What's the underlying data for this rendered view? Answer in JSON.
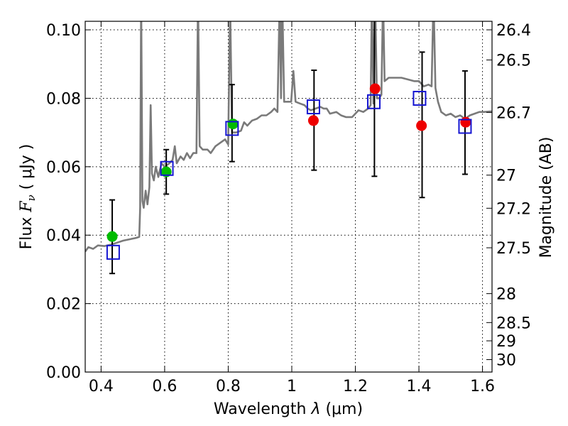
{
  "chart_data": {
    "type": "scatter",
    "xlabel_prefix": "Wavelength",
    "xlabel_lambda": "λ",
    "xlabel_unit": "(μm)",
    "ylabel_text": "Flux",
    "ylabel_symbol": "F",
    "ylabel_subscript": "ν",
    "ylabel_unit": "( μJy )",
    "y2label": "Magnitude (AB)",
    "xlim": [
      0.35,
      1.63
    ],
    "ylim": [
      0.0,
      0.1025
    ],
    "x_ticks": [
      {
        "value": 0.4,
        "label": "0.4"
      },
      {
        "value": 0.6,
        "label": "0.6"
      },
      {
        "value": 0.8,
        "label": "0.8"
      },
      {
        "value": 1.0,
        "label": "1"
      },
      {
        "value": 1.2,
        "label": "1.2"
      },
      {
        "value": 1.4,
        "label": "1.4"
      },
      {
        "value": 1.6,
        "label": "1.6"
      }
    ],
    "y_ticks": [
      {
        "value": 0.0,
        "label": "0.00"
      },
      {
        "value": 0.02,
        "label": "0.02"
      },
      {
        "value": 0.04,
        "label": "0.04"
      },
      {
        "value": 0.06,
        "label": "0.06"
      },
      {
        "value": 0.08,
        "label": "0.08"
      },
      {
        "value": 0.1,
        "label": "0.10"
      }
    ],
    "y2_ticks": [
      {
        "mag": 26.4,
        "label": "26.4"
      },
      {
        "mag": 26.5,
        "label": "26.5"
      },
      {
        "mag": 26.7,
        "label": "26.7"
      },
      {
        "mag": 27.0,
        "label": "27"
      },
      {
        "mag": 27.2,
        "label": "27.2"
      },
      {
        "mag": 27.5,
        "label": "27.5"
      },
      {
        "mag": 28.0,
        "label": "28"
      },
      {
        "mag": 28.5,
        "label": "28.5"
      },
      {
        "mag": 29.0,
        "label": "29"
      },
      {
        "mag": 30.0,
        "label": "30"
      }
    ],
    "grid": true,
    "model_spectrum": {
      "color": "#7a7a7a",
      "points": [
        [
          0.35,
          0.0352
        ],
        [
          0.36,
          0.0365
        ],
        [
          0.375,
          0.036
        ],
        [
          0.39,
          0.037
        ],
        [
          0.41,
          0.0368
        ],
        [
          0.43,
          0.0372
        ],
        [
          0.45,
          0.0378
        ],
        [
          0.47,
          0.0384
        ],
        [
          0.49,
          0.0388
        ],
        [
          0.51,
          0.0392
        ],
        [
          0.52,
          0.0395
        ],
        [
          0.523,
          0.048
        ],
        [
          0.526,
          0.11
        ],
        [
          0.53,
          0.05
        ],
        [
          0.534,
          0.048
        ],
        [
          0.54,
          0.053
        ],
        [
          0.546,
          0.049
        ],
        [
          0.552,
          0.054
        ],
        [
          0.556,
          0.078
        ],
        [
          0.56,
          0.058
        ],
        [
          0.566,
          0.056
        ],
        [
          0.572,
          0.06
        ],
        [
          0.58,
          0.057
        ],
        [
          0.59,
          0.061
        ],
        [
          0.6,
          0.06
        ],
        [
          0.615,
          0.061
        ],
        [
          0.625,
          0.062
        ],
        [
          0.632,
          0.066
        ],
        [
          0.638,
          0.061
        ],
        [
          0.65,
          0.063
        ],
        [
          0.66,
          0.062
        ],
        [
          0.67,
          0.064
        ],
        [
          0.68,
          0.0625
        ],
        [
          0.69,
          0.064
        ],
        [
          0.7,
          0.064
        ],
        [
          0.705,
          0.11
        ],
        [
          0.71,
          0.066
        ],
        [
          0.72,
          0.065
        ],
        [
          0.735,
          0.065
        ],
        [
          0.745,
          0.064
        ],
        [
          0.76,
          0.066
        ],
        [
          0.775,
          0.067
        ],
        [
          0.79,
          0.068
        ],
        [
          0.8,
          0.0665
        ],
        [
          0.806,
          0.108
        ],
        [
          0.812,
          0.07
        ],
        [
          0.825,
          0.07
        ],
        [
          0.84,
          0.0705
        ],
        [
          0.85,
          0.073
        ],
        [
          0.86,
          0.072
        ],
        [
          0.875,
          0.0735
        ],
        [
          0.89,
          0.074
        ],
        [
          0.905,
          0.075
        ],
        [
          0.92,
          0.075
        ],
        [
          0.935,
          0.076
        ],
        [
          0.945,
          0.077
        ],
        [
          0.955,
          0.076
        ],
        [
          0.962,
          0.11
        ],
        [
          0.966,
          0.08
        ],
        [
          0.97,
          0.11
        ],
        [
          0.976,
          0.079
        ],
        [
          0.985,
          0.079
        ],
        [
          0.998,
          0.079
        ],
        [
          1.005,
          0.088
        ],
        [
          1.012,
          0.079
        ],
        [
          1.025,
          0.0785
        ],
        [
          1.04,
          0.078
        ],
        [
          1.05,
          0.077
        ],
        [
          1.06,
          0.0765
        ],
        [
          1.075,
          0.077
        ],
        [
          1.09,
          0.0775
        ],
        [
          1.1,
          0.077
        ],
        [
          1.11,
          0.077
        ],
        [
          1.12,
          0.0755
        ],
        [
          1.14,
          0.076
        ],
        [
          1.155,
          0.075
        ],
        [
          1.17,
          0.0745
        ],
        [
          1.19,
          0.0745
        ],
        [
          1.21,
          0.0765
        ],
        [
          1.225,
          0.076
        ],
        [
          1.24,
          0.077
        ],
        [
          1.248,
          0.078
        ],
        [
          1.252,
          0.11
        ],
        [
          1.257,
          0.0785
        ],
        [
          1.262,
          0.11
        ],
        [
          1.268,
          0.08
        ],
        [
          1.275,
          0.08
        ],
        [
          1.282,
          0.081
        ],
        [
          1.287,
          0.11
        ],
        [
          1.292,
          0.085
        ],
        [
          1.305,
          0.086
        ],
        [
          1.325,
          0.086
        ],
        [
          1.345,
          0.086
        ],
        [
          1.365,
          0.0855
        ],
        [
          1.385,
          0.085
        ],
        [
          1.4,
          0.085
        ],
        [
          1.415,
          0.0835
        ],
        [
          1.43,
          0.084
        ],
        [
          1.44,
          0.0835
        ],
        [
          1.446,
          0.11
        ],
        [
          1.452,
          0.083
        ],
        [
          1.46,
          0.079
        ],
        [
          1.47,
          0.076
        ],
        [
          1.485,
          0.075
        ],
        [
          1.5,
          0.0755
        ],
        [
          1.515,
          0.0745
        ],
        [
          1.53,
          0.075
        ],
        [
          1.545,
          0.074
        ],
        [
          1.56,
          0.075
        ],
        [
          1.575,
          0.0755
        ],
        [
          1.59,
          0.076
        ],
        [
          1.605,
          0.076
        ],
        [
          1.63,
          0.0762
        ]
      ]
    },
    "observed_errorbars": [
      {
        "x": 0.435,
        "low": 0.0288,
        "high": 0.0503
      },
      {
        "x": 0.605,
        "low": 0.052,
        "high": 0.065
      },
      {
        "x": 0.812,
        "low": 0.0615,
        "high": 0.084
      },
      {
        "x": 1.07,
        "low": 0.059,
        "high": 0.0882
      },
      {
        "x": 1.26,
        "low": 0.0572,
        "high": 0.103
      },
      {
        "x": 1.41,
        "low": 0.051,
        "high": 0.0935
      },
      {
        "x": 1.545,
        "low": 0.0578,
        "high": 0.088
      }
    ],
    "series": [
      {
        "marker": "circle",
        "color": "#00bb00",
        "points": [
          [
            0.435,
            0.0396
          ],
          [
            0.605,
            0.0585
          ],
          [
            0.815,
            0.0725
          ]
        ]
      },
      {
        "marker": "circle",
        "color": "#ee0000",
        "points": [
          [
            1.068,
            0.0735
          ],
          [
            1.262,
            0.0828
          ],
          [
            1.408,
            0.072
          ],
          [
            1.547,
            0.073
          ]
        ]
      },
      {
        "marker": "square",
        "color": "#1414d2",
        "points": [
          [
            0.438,
            0.035
          ],
          [
            0.607,
            0.0595
          ],
          [
            0.812,
            0.0712
          ],
          [
            1.068,
            0.0775
          ],
          [
            1.258,
            0.079
          ],
          [
            1.402,
            0.08
          ],
          [
            1.545,
            0.0718
          ]
        ]
      }
    ]
  }
}
